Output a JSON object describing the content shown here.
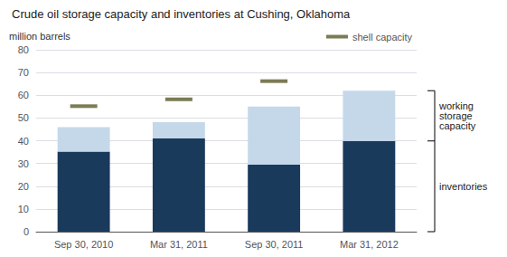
{
  "chart_data": {
    "type": "bar",
    "title": "Crude oil storage capacity and inventories at Cushing, Oklahoma",
    "ylabel": "million barrels",
    "categories": [
      "Sep 30, 2010",
      "Mar 31, 2011",
      "Sep 30, 2011",
      "Mar 31, 2012"
    ],
    "series": [
      {
        "color": "#1a3a5c",
        "values": [
          35.2,
          41.0,
          29.5,
          39.9
        ]
      },
      {
        "color": "#c5d8ea",
        "values": [
          10.8,
          7.2,
          25.5,
          22.1
        ]
      },
      {
        "name": "shell capacity",
        "type": "scatter",
        "marker": "dash",
        "color": "#5a5a2a",
        "values": [
          55.2,
          58.2,
          66.2,
          null
        ]
      }
    ],
    "stacked": true,
    "ylim": [
      0,
      80
    ],
    "yticks": [
      0,
      10,
      20,
      30,
      40,
      50,
      60,
      70,
      80
    ],
    "grid": true,
    "legend": "upper right",
    "annotations": [
      "inventories",
      "working\nstorage\ncapacity"
    ]
  }
}
